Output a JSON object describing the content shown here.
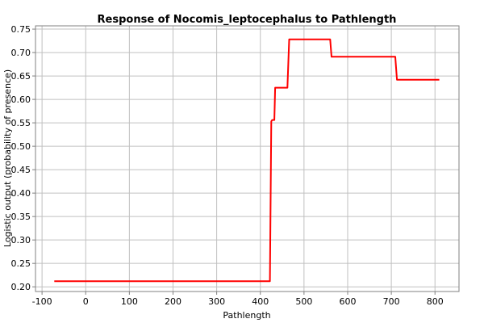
{
  "chart_data": {
    "type": "line",
    "title": "Response of Nocomis_leptocephalus to Pathlength",
    "xlabel": "Pathlength",
    "ylabel": "Logistic output (probability of presence)",
    "xlim": [
      -115,
      855
    ],
    "ylim": [
      0.19,
      0.757
    ],
    "x_ticks": [
      -100,
      0,
      100,
      200,
      300,
      400,
      500,
      600,
      700,
      800
    ],
    "y_ticks": [
      0.2,
      0.25,
      0.3,
      0.35,
      0.4,
      0.45,
      0.5,
      0.55,
      0.6,
      0.65,
      0.7,
      0.75
    ],
    "grid": true,
    "series": [
      {
        "color": "#ff0000",
        "x": [
          -72,
          422,
          425,
          427,
          432,
          434,
          462,
          466,
          560,
          563,
          709,
          713,
          810
        ],
        "y": [
          0.212,
          0.212,
          0.553,
          0.556,
          0.556,
          0.625,
          0.625,
          0.728,
          0.728,
          0.691,
          0.691,
          0.642,
          0.642
        ]
      }
    ]
  }
}
